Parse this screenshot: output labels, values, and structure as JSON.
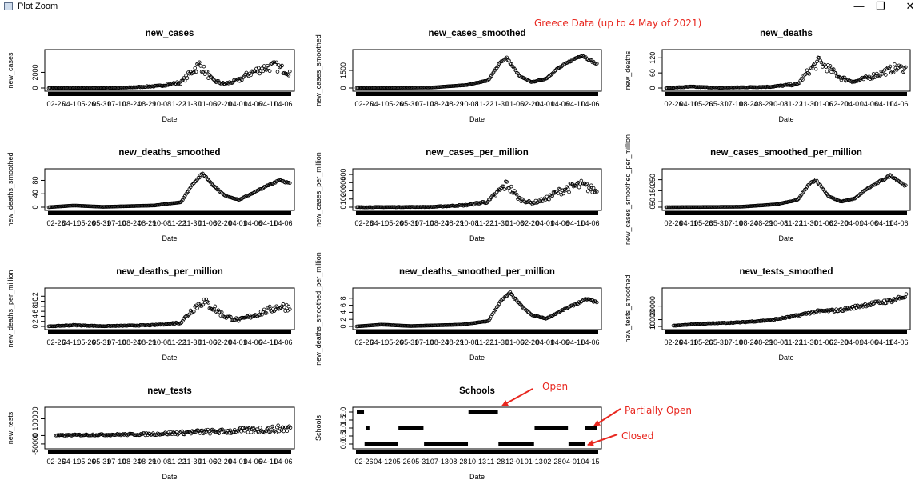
{
  "window": {
    "title": "Plot Zoom",
    "minimize_glyph": "—",
    "restore_glyph": "❐",
    "close_glyph": "✕",
    "icon": "plot-window-icon"
  },
  "annotations": {
    "header": "Greece Data (up to 4 May of 2021)",
    "open": "Open",
    "partially_open": "Partially Open",
    "closed": "Closed",
    "color": "#e8271f"
  },
  "style": {
    "point_color": "#000000",
    "frame_color": "#000000",
    "point_shape": "open-circle"
  },
  "chart_data": [
    {
      "type": "scatter",
      "title": "new_cases",
      "xlabel": "Date",
      "ylabel": "new_cases",
      "x_range": [
        "2020-02-26",
        "2021-05-04"
      ],
      "x_ticks": [
        "02-26",
        "04-11",
        "05-26",
        "05-31",
        "07-10",
        "08-24",
        "08-29",
        "10-08",
        "11-22",
        "11-30",
        "01-06",
        "02-20",
        "04-01",
        "04-06",
        "04-11",
        "04-06"
      ],
      "y_ticks": [
        "0",
        "2000"
      ],
      "ylim": [
        0,
        4500
      ],
      "trend_x": [
        "2020-02-26",
        "2020-07-10",
        "2020-09-10",
        "2020-10-20",
        "2020-11-10",
        "2020-11-22",
        "2020-12-15",
        "2021-01-06",
        "2021-02-01",
        "2021-02-20",
        "2021-03-20",
        "2021-04-06",
        "2021-05-04"
      ],
      "trend_y": [
        0,
        40,
        250,
        700,
        2200,
        3000,
        1000,
        500,
        1000,
        1900,
        2600,
        2800,
        2000
      ],
      "spread": 0.22
    },
    {
      "type": "scatter",
      "title": "new_cases_smoothed",
      "xlabel": "Date",
      "ylabel": "new_cases_smoothed",
      "x_range": [
        "2020-02-26",
        "2021-05-04"
      ],
      "x_ticks": [
        "02-26",
        "04-11",
        "05-26",
        "05-31",
        "07-10",
        "08-24",
        "08-29",
        "10-08",
        "11-22",
        "11-30",
        "01-06",
        "02-20",
        "04-01",
        "04-06",
        "04-11",
        "04-06"
      ],
      "y_ticks": [
        "0",
        "1500"
      ],
      "ylim": [
        0,
        3000
      ],
      "trend_x": [
        "2020-02-26",
        "2020-07-10",
        "2020-09-10",
        "2020-10-20",
        "2020-11-10",
        "2020-11-22",
        "2020-12-15",
        "2021-01-06",
        "2021-02-01",
        "2021-02-20",
        "2021-03-20",
        "2021-04-06",
        "2021-05-04"
      ],
      "trend_y": [
        0,
        40,
        250,
        650,
        2200,
        2550,
        1000,
        500,
        800,
        1600,
        2400,
        2800,
        2000
      ],
      "spread": 0.03
    },
    {
      "type": "scatter",
      "title": "new_deaths",
      "xlabel": "Date",
      "ylabel": "new_deaths",
      "x_range": [
        "2020-02-26",
        "2021-05-04"
      ],
      "x_ticks": [
        "02-26",
        "04-11",
        "05-26",
        "05-31",
        "07-10",
        "08-24",
        "08-29",
        "10-08",
        "11-22",
        "11-30",
        "01-06",
        "02-20",
        "04-01",
        "04-06",
        "04-11",
        "04-06"
      ],
      "y_ticks": [
        "0",
        "60",
        "120"
      ],
      "ylim": [
        0,
        140
      ],
      "trend_x": [
        "2020-02-26",
        "2020-04-11",
        "2020-06-01",
        "2020-09-01",
        "2020-10-20",
        "2020-11-10",
        "2020-11-28",
        "2020-12-20",
        "2021-01-06",
        "2021-02-01",
        "2021-03-01",
        "2021-04-15",
        "2021-05-04"
      ],
      "trend_y": [
        0,
        5,
        1,
        5,
        15,
        70,
        105,
        70,
        40,
        25,
        45,
        80,
        75
      ],
      "spread": 0.2
    },
    {
      "type": "scatter",
      "title": "new_deaths_smoothed",
      "xlabel": "Date",
      "ylabel": "new_deaths_smoothed",
      "x_range": [
        "2020-02-26",
        "2021-05-04"
      ],
      "x_ticks": [
        "02-26",
        "04-11",
        "05-26",
        "05-31",
        "07-10",
        "08-24",
        "08-29",
        "10-08",
        "11-22",
        "11-30",
        "01-06",
        "02-20",
        "04-01",
        "04-06",
        "04-11",
        "04-06"
      ],
      "y_ticks": [
        "0",
        "40",
        "80"
      ],
      "ylim": [
        0,
        105
      ],
      "trend_x": [
        "2020-02-26",
        "2020-04-11",
        "2020-06-01",
        "2020-09-01",
        "2020-10-20",
        "2020-11-10",
        "2020-11-28",
        "2020-12-20",
        "2021-01-06",
        "2021-02-01",
        "2021-03-01",
        "2021-04-15",
        "2021-05-04"
      ],
      "trend_y": [
        0,
        5,
        1,
        5,
        15,
        70,
        100,
        60,
        35,
        22,
        45,
        82,
        70
      ],
      "spread": 0.03
    },
    {
      "type": "scatter",
      "title": "new_cases_per_million",
      "xlabel": "Date",
      "ylabel": "new_cases_per_million",
      "x_range": [
        "2020-02-26",
        "2021-05-04"
      ],
      "x_ticks": [
        "02-26",
        "04-11",
        "05-26",
        "05-31",
        "07-10",
        "08-24",
        "08-29",
        "10-08",
        "11-22",
        "11-30",
        "01-06",
        "02-20",
        "04-01",
        "04-06",
        "04-11",
        "04-06"
      ],
      "y_ticks": [
        "0",
        "100",
        "200",
        "300",
        "400"
      ],
      "ylim": [
        0,
        430
      ],
      "trend_x": [
        "2020-02-26",
        "2020-07-10",
        "2020-09-10",
        "2020-10-20",
        "2020-11-10",
        "2020-11-22",
        "2020-12-15",
        "2021-01-06",
        "2021-02-01",
        "2021-02-20",
        "2021-03-20",
        "2021-04-06",
        "2021-05-04"
      ],
      "trend_y": [
        0,
        4,
        25,
        70,
        210,
        280,
        100,
        50,
        100,
        180,
        250,
        270,
        190
      ],
      "spread": 0.22
    },
    {
      "type": "scatter",
      "title": "new_cases_smoothed_per_million",
      "xlabel": "Date",
      "ylabel": "new_cases_smoothed_per_million",
      "x_range": [
        "2020-02-26",
        "2021-05-04"
      ],
      "x_ticks": [
        "02-26",
        "04-11",
        "05-26",
        "05-31",
        "07-10",
        "08-24",
        "08-29",
        "10-08",
        "11-22",
        "11-30",
        "01-06",
        "02-20",
        "04-01",
        "04-06",
        "04-11",
        "04-06"
      ],
      "y_ticks": [
        "0",
        "50",
        "150",
        "250"
      ],
      "ylim": [
        0,
        320
      ],
      "trend_x": [
        "2020-02-26",
        "2020-07-10",
        "2020-09-10",
        "2020-10-20",
        "2020-11-10",
        "2020-11-22",
        "2020-12-15",
        "2021-01-06",
        "2021-02-01",
        "2021-02-20",
        "2021-03-20",
        "2021-04-06",
        "2021-05-04"
      ],
      "trend_y": [
        0,
        4,
        25,
        65,
        210,
        250,
        100,
        50,
        80,
        160,
        240,
        290,
        190
      ],
      "spread": 0.03
    },
    {
      "type": "scatter",
      "title": "new_deaths_per_million",
      "xlabel": "Date",
      "ylabel": "new_deaths_per_million",
      "x_range": [
        "2020-02-26",
        "2021-05-04"
      ],
      "x_ticks": [
        "02-26",
        "04-11",
        "05-26",
        "05-31",
        "07-10",
        "08-24",
        "08-29",
        "10-08",
        "11-22",
        "11-30",
        "01-06",
        "02-20",
        "04-01",
        "04-06",
        "04-11",
        "04-06"
      ],
      "y_ticks": [
        "0",
        "2",
        "4",
        "6",
        "8",
        "10",
        "12"
      ],
      "ylim": [
        0,
        14
      ],
      "trend_x": [
        "2020-02-26",
        "2020-04-11",
        "2020-06-01",
        "2020-09-01",
        "2020-10-20",
        "2020-11-10",
        "2020-11-28",
        "2020-12-20",
        "2021-01-06",
        "2021-02-01",
        "2021-03-01",
        "2021-04-15",
        "2021-05-04"
      ],
      "trend_y": [
        0,
        0.5,
        0.1,
        0.5,
        1.5,
        7,
        10,
        7,
        4,
        2.5,
        4.5,
        8,
        7.5
      ],
      "spread": 0.2
    },
    {
      "type": "scatter",
      "title": "new_deaths_smoothed_per_million",
      "xlabel": "Date",
      "ylabel": "new_deaths_smoothed_per_million",
      "x_range": [
        "2020-02-26",
        "2021-05-04"
      ],
      "x_ticks": [
        "02-26",
        "04-11",
        "05-26",
        "05-31",
        "07-10",
        "08-24",
        "08-29",
        "10-08",
        "11-22",
        "11-30",
        "01-06",
        "02-20",
        "04-01",
        "04-06",
        "04-11",
        "04-06"
      ],
      "y_ticks": [
        "0",
        "2",
        "4",
        "6",
        "8"
      ],
      "ylim": [
        0,
        10
      ],
      "trend_x": [
        "2020-02-26",
        "2020-04-11",
        "2020-06-01",
        "2020-09-01",
        "2020-10-20",
        "2020-11-10",
        "2020-11-28",
        "2020-12-20",
        "2021-01-06",
        "2021-02-01",
        "2021-03-01",
        "2021-04-15",
        "2021-05-04"
      ],
      "trend_y": [
        0,
        0.5,
        0.1,
        0.5,
        1.5,
        7,
        9.5,
        5.5,
        3.2,
        2.2,
        4.5,
        7.8,
        6.8
      ],
      "spread": 0.03
    },
    {
      "type": "scatter",
      "title": "new_tests_smoothed",
      "xlabel": "Date",
      "ylabel": "new_tests_smoothed",
      "x_range": [
        "2020-02-26",
        "2021-05-04"
      ],
      "x_ticks": [
        "02-26",
        "04-11",
        "05-26",
        "05-31",
        "07-10",
        "08-24",
        "08-29",
        "10-08",
        "11-22",
        "11-30",
        "01-06",
        "02-20",
        "04-01",
        "04-06",
        "04-11",
        "04-06"
      ],
      "y_ticks": [
        "0",
        "10000",
        "30000"
      ],
      "ylim": [
        0,
        52000
      ],
      "trend_x": [
        "2020-03-10",
        "2020-05-01",
        "2020-07-10",
        "2020-08-29",
        "2020-10-08",
        "2020-11-22",
        "2021-01-06",
        "2021-02-20",
        "2021-04-06",
        "2021-05-04"
      ],
      "trend_y": [
        1000,
        4000,
        6000,
        9000,
        14000,
        22000,
        24000,
        32000,
        38000,
        45000
      ],
      "spread": 0.08
    },
    {
      "type": "scatter",
      "title": "new_tests",
      "xlabel": "Date",
      "ylabel": "new_tests",
      "x_range": [
        "2020-02-26",
        "2021-05-04"
      ],
      "x_ticks": [
        "02-26",
        "04-11",
        "05-26",
        "05-31",
        "07-10",
        "08-24",
        "08-29",
        "10-08",
        "11-22",
        "11-30",
        "01-06",
        "02-20",
        "04-01",
        "04-06",
        "04-11",
        "04-06"
      ],
      "y_ticks": [
        "-50000",
        "0",
        "100000"
      ],
      "ylim": [
        -60000,
        150000
      ],
      "trend_x": [
        "2020-03-10",
        "2020-05-01",
        "2020-07-10",
        "2020-08-29",
        "2020-10-08",
        "2020-11-22",
        "2021-01-06",
        "2021-02-20",
        "2021-04-06",
        "2021-05-04"
      ],
      "trend_y": [
        1000,
        4000,
        6000,
        9000,
        14000,
        22000,
        24000,
        32000,
        38000,
        45000
      ],
      "spread": 0.5
    },
    {
      "type": "scatter",
      "title": "Schools",
      "xlabel": "Date",
      "ylabel": "Schools",
      "x_range": [
        "2020-02-26",
        "2021-05-04"
      ],
      "x_ticks": [
        "02-26",
        "04-12",
        "05-26",
        "05-31",
        "07-13",
        "08-28",
        "10-13",
        "11-28",
        "12-01",
        "01-13",
        "02-28",
        "04-01",
        "04-15"
      ],
      "y_ticks": [
        "0.0",
        "0.5",
        "1.0",
        "1.5",
        "2.0"
      ],
      "ylim": [
        -0.1,
        2.1
      ],
      "segments": [
        {
          "from": "2020-02-26",
          "to": "2020-03-10",
          "value": 2
        },
        {
          "from": "2020-03-11",
          "to": "2020-05-10",
          "value": 0
        },
        {
          "from": "2020-03-14",
          "to": "2020-03-18",
          "value": 1
        },
        {
          "from": "2020-05-11",
          "to": "2020-06-25",
          "value": 1
        },
        {
          "from": "2020-06-26",
          "to": "2020-09-13",
          "value": 0
        },
        {
          "from": "2020-09-14",
          "to": "2020-11-06",
          "value": 2
        },
        {
          "from": "2020-11-07",
          "to": "2021-01-10",
          "value": 0
        },
        {
          "from": "2021-01-11",
          "to": "2021-03-12",
          "value": 1
        },
        {
          "from": "2021-03-13",
          "to": "2021-04-11",
          "value": 0
        },
        {
          "from": "2021-04-12",
          "to": "2021-05-04",
          "value": 1
        }
      ]
    }
  ]
}
